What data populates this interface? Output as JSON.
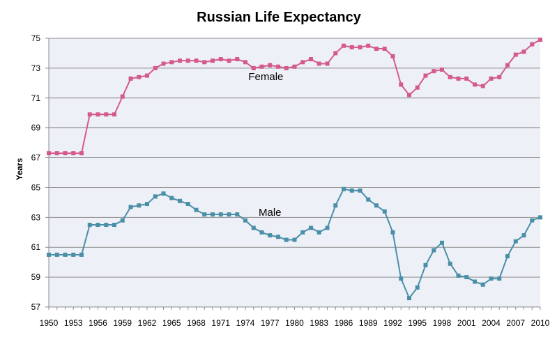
{
  "chart_data": {
    "type": "line",
    "title": "Russian Life Expectancy",
    "xlabel": "",
    "ylabel": "Years",
    "xlim": [
      1950,
      2010
    ],
    "ylim": [
      57,
      75
    ],
    "y_ticks": [
      57,
      59,
      61,
      63,
      65,
      67,
      69,
      71,
      73,
      75
    ],
    "x_ticks": [
      1950,
      1953,
      1956,
      1959,
      1962,
      1965,
      1968,
      1971,
      1974,
      1977,
      1980,
      1983,
      1986,
      1989,
      1992,
      1995,
      1998,
      2001,
      2004,
      2007,
      2010
    ],
    "grid": true,
    "plot_background": "#eef0f7",
    "x": [
      1950,
      1951,
      1952,
      1953,
      1954,
      1955,
      1956,
      1957,
      1958,
      1959,
      1960,
      1961,
      1962,
      1963,
      1964,
      1965,
      1966,
      1967,
      1968,
      1969,
      1970,
      1971,
      1972,
      1973,
      1974,
      1975,
      1976,
      1977,
      1978,
      1979,
      1980,
      1981,
      1982,
      1983,
      1984,
      1985,
      1986,
      1987,
      1988,
      1989,
      1990,
      1991,
      1992,
      1993,
      1994,
      1995,
      1996,
      1997,
      1998,
      1999,
      2000,
      2001,
      2002,
      2003,
      2004,
      2005,
      2006,
      2007,
      2008,
      2009,
      2010
    ],
    "series": [
      {
        "name": "Female",
        "color": "#d45a8c",
        "values": [
          67.3,
          67.3,
          67.3,
          67.3,
          67.3,
          69.9,
          69.9,
          69.9,
          69.9,
          71.1,
          72.3,
          72.4,
          72.5,
          73.0,
          73.3,
          73.4,
          73.5,
          73.5,
          73.5,
          73.4,
          73.5,
          73.6,
          73.5,
          73.6,
          73.4,
          73.0,
          73.1,
          73.2,
          73.1,
          73.0,
          73.1,
          73.4,
          73.6,
          73.3,
          73.3,
          74.0,
          74.5,
          74.4,
          74.4,
          74.5,
          74.3,
          74.3,
          73.8,
          71.9,
          71.2,
          71.7,
          72.5,
          72.8,
          72.9,
          72.4,
          72.3,
          72.3,
          71.9,
          71.8,
          72.3,
          72.4,
          73.2,
          73.9,
          74.1,
          74.6,
          74.9
        ]
      },
      {
        "name": "Male",
        "color": "#4a8fa8",
        "values": [
          60.5,
          60.5,
          60.5,
          60.5,
          60.5,
          62.5,
          62.5,
          62.5,
          62.5,
          62.8,
          63.7,
          63.8,
          63.9,
          64.4,
          64.6,
          64.3,
          64.1,
          63.9,
          63.5,
          63.2,
          63.2,
          63.2,
          63.2,
          63.2,
          62.8,
          62.3,
          62.0,
          61.8,
          61.7,
          61.5,
          61.5,
          62.0,
          62.3,
          62.0,
          62.3,
          63.8,
          64.9,
          64.8,
          64.8,
          64.2,
          63.8,
          63.4,
          62.0,
          58.9,
          57.6,
          58.3,
          59.8,
          60.8,
          61.3,
          59.9,
          59.1,
          59.0,
          58.7,
          58.5,
          58.9,
          58.9,
          60.4,
          61.4,
          61.8,
          62.8,
          63.0
        ]
      }
    ],
    "annotations": [
      {
        "text": "Female",
        "x": 1976.5,
        "y": 72.2
      },
      {
        "text": "Male",
        "x": 1977,
        "y": 63.1
      }
    ]
  }
}
